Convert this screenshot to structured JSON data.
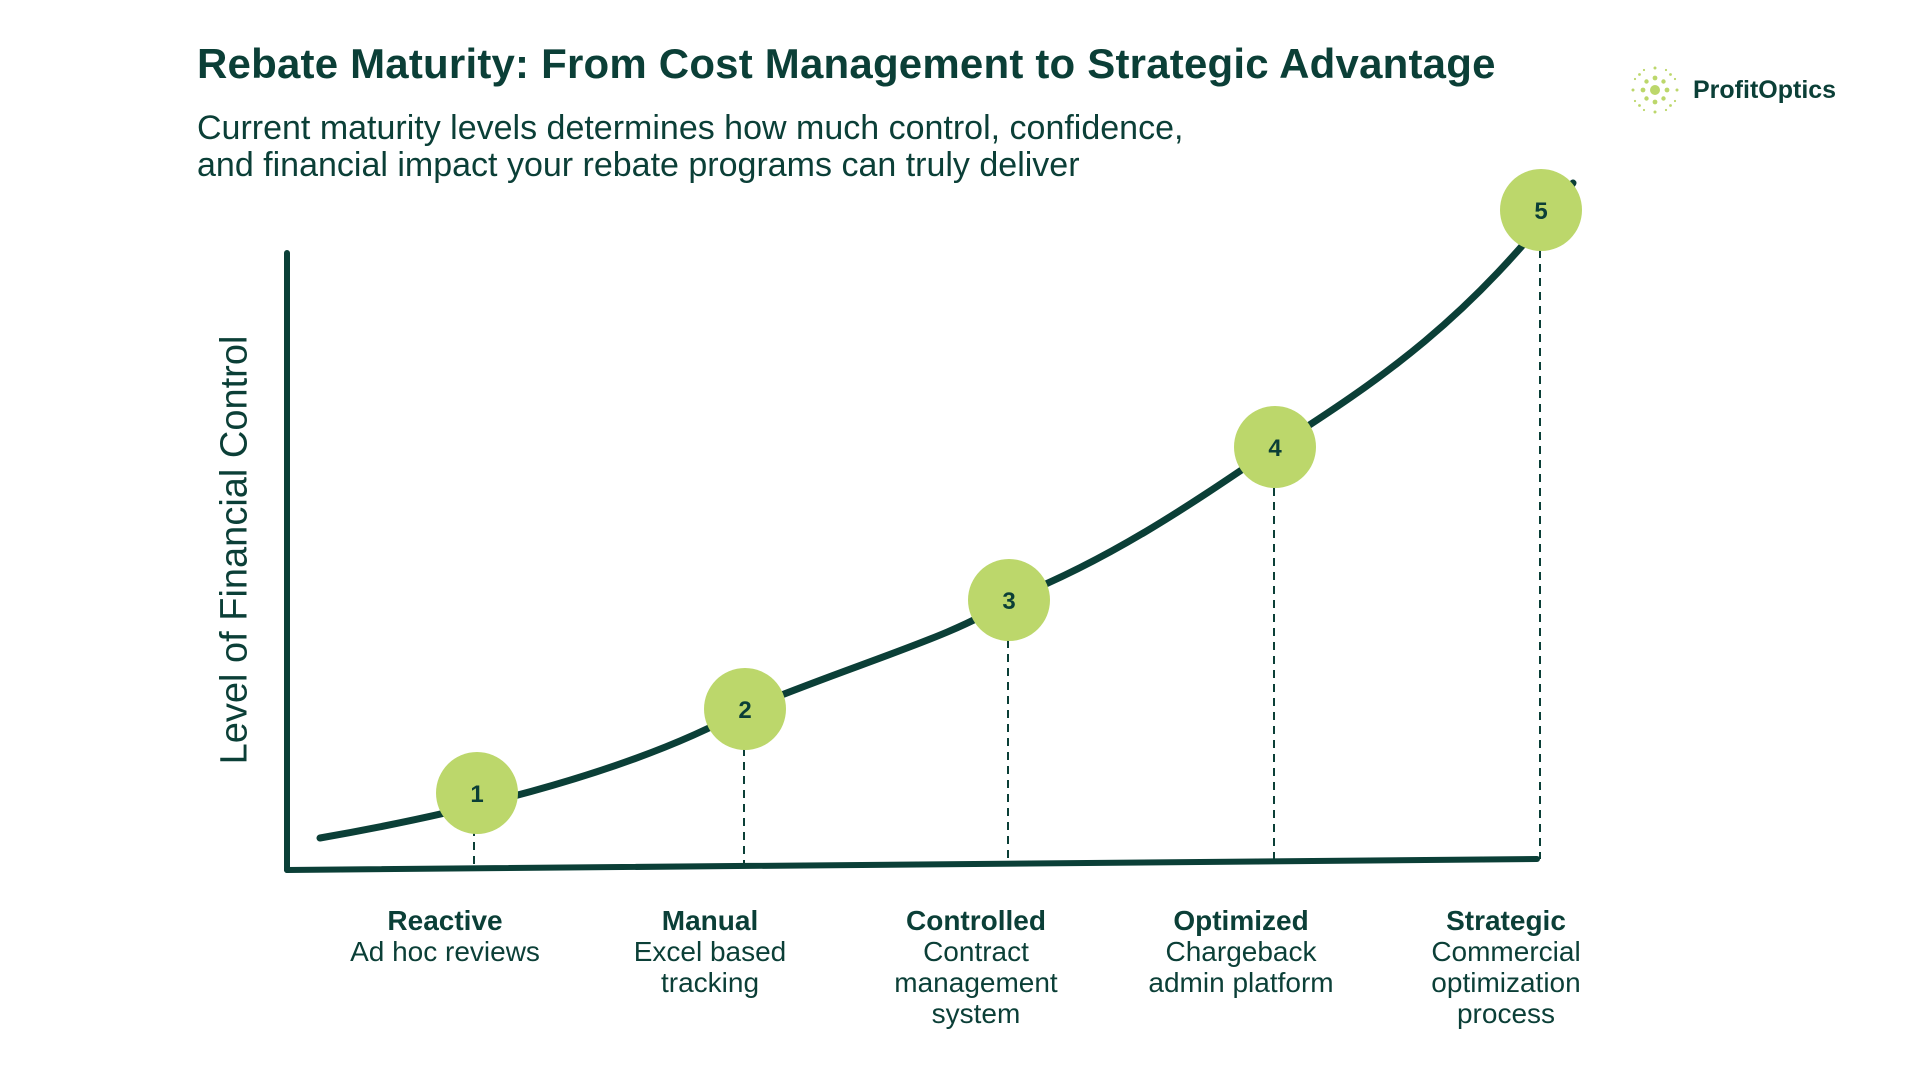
{
  "title": "Rebate Maturity: From Cost Management to Strategic Advantage",
  "subtitle": {
    "line1": "Current maturity levels determines how much control, confidence,",
    "line2": "and financial impact your rebate programs can truly deliver"
  },
  "logo": {
    "text": "ProfitOptics",
    "icon": "sparkle-dots-icon"
  },
  "y_axis_label": "Level of Financial Control",
  "colors": {
    "dark_green": "#0b3f37",
    "lime": "#bcd76b",
    "white": "#ffffff"
  },
  "stages": [
    {
      "number": "1",
      "name": "Reactive",
      "desc": [
        "Ad hoc reviews"
      ]
    },
    {
      "number": "2",
      "name": "Manual",
      "desc": [
        "Excel based",
        "tracking"
      ]
    },
    {
      "number": "3",
      "name": "Controlled",
      "desc": [
        "Contract",
        "management",
        "system"
      ]
    },
    {
      "number": "4",
      "name": "Optimized",
      "desc": [
        "Chargeback",
        "admin platform"
      ]
    },
    {
      "number": "5",
      "name": "Strategic",
      "desc": [
        "Commercial",
        "optimization",
        "process"
      ]
    }
  ]
}
